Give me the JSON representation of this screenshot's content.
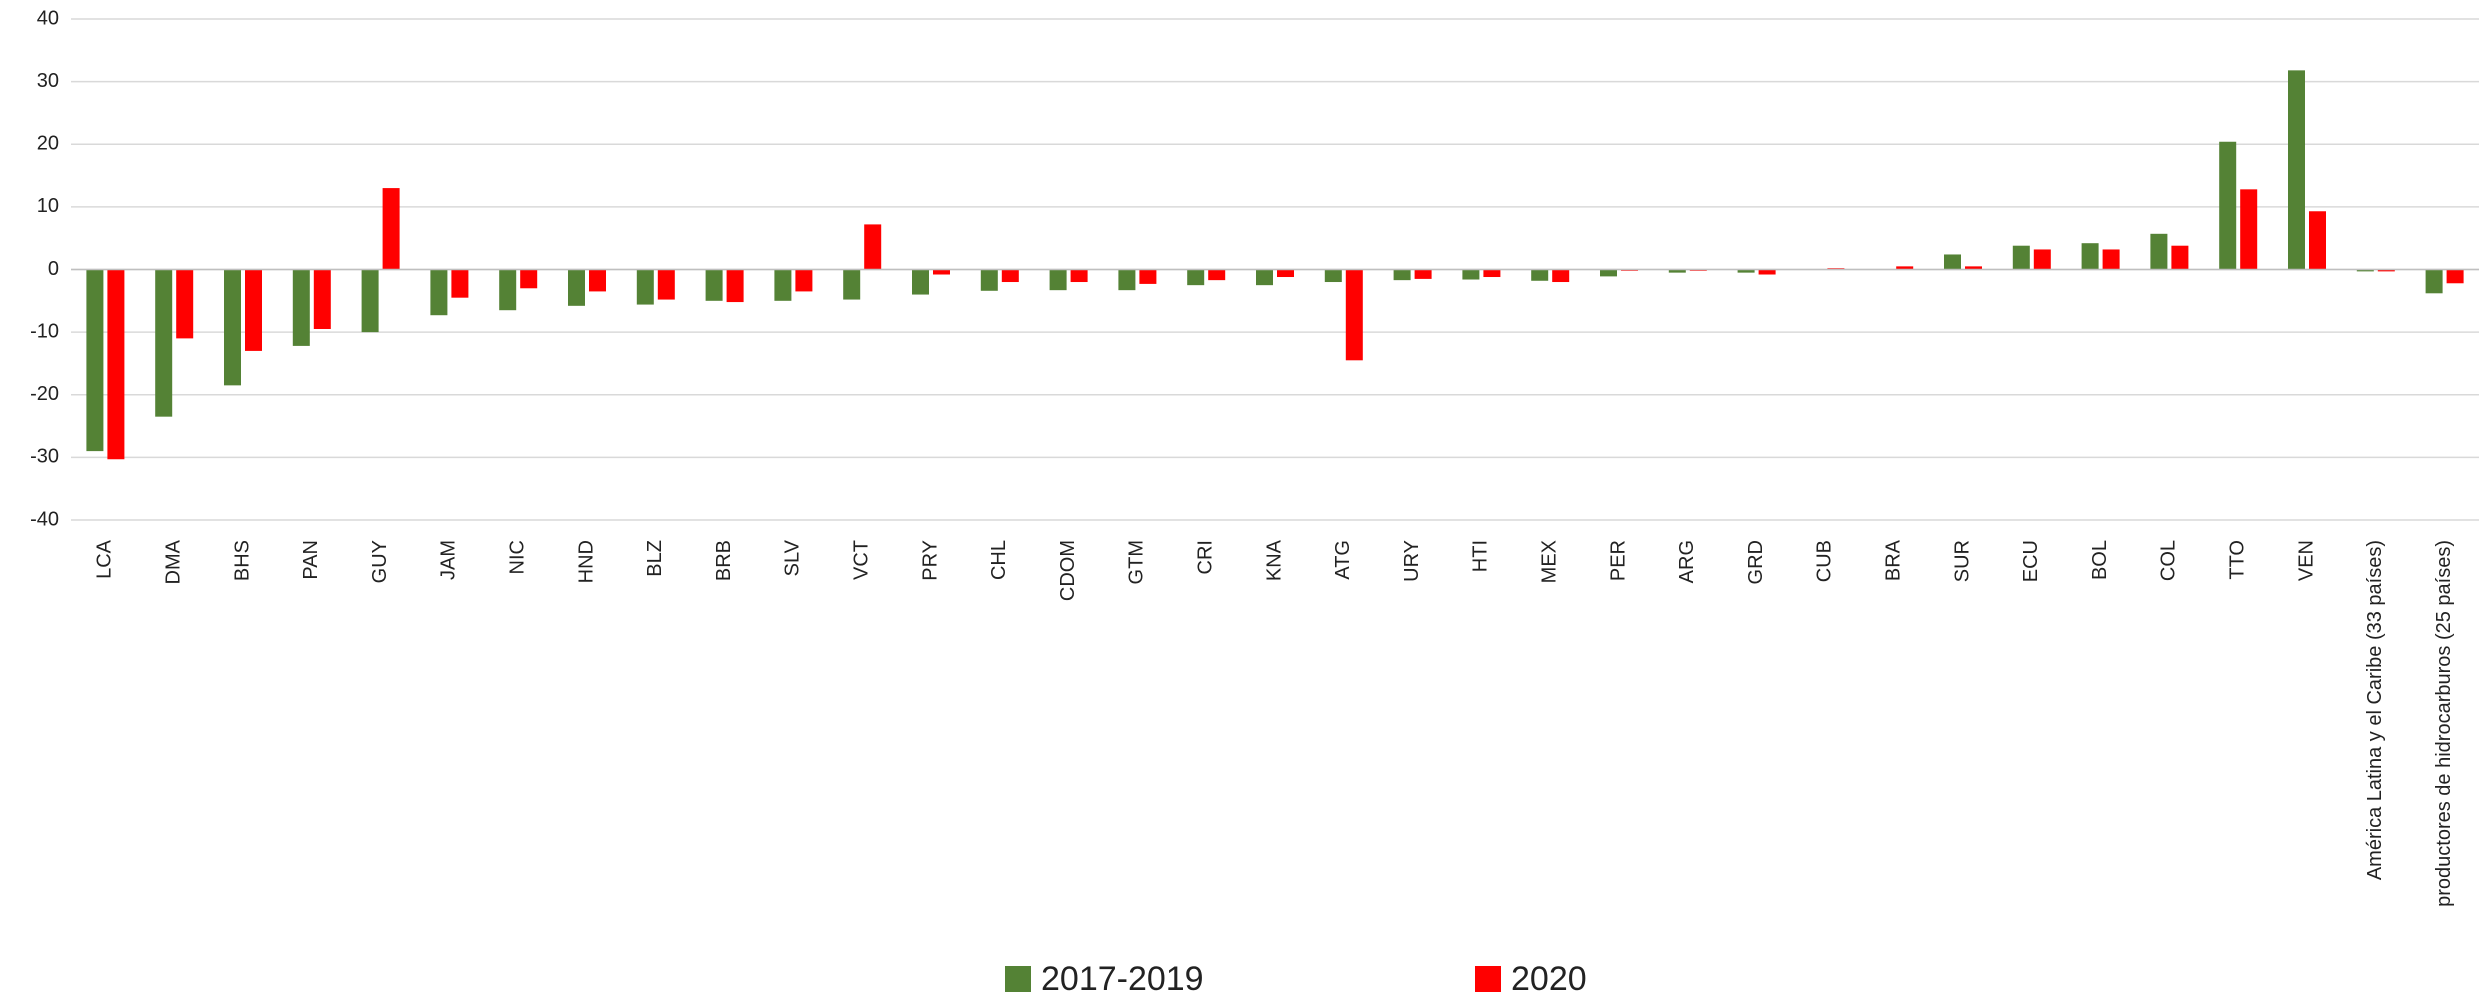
{
  "chart_data": {
    "type": "bar",
    "categories": [
      "LCA",
      "DMA",
      "BHS",
      "PAN",
      "GUY",
      "JAM",
      "NIC",
      "HND",
      "BLZ",
      "BRB",
      "SLV",
      "VCT",
      "PRY",
      "CHL",
      "CDOM",
      "GTM",
      "CRI",
      "KNA",
      "ATG",
      "URY",
      "HTI",
      "MEX",
      "PER",
      "ARG",
      "GRD",
      "CUB",
      "BRA",
      "SUR",
      "ECU",
      "BOL",
      "COL",
      "TTO",
      "VEN",
      "América Latina y el Caribe (33 países)",
      "productores de hidrocarburos (25 países)"
    ],
    "series": [
      {
        "name": "2017-2019",
        "color": "#548235",
        "values": [
          -29,
          -23.5,
          -18.5,
          -12.2,
          -10,
          -7.3,
          -6.5,
          -5.8,
          -5.6,
          -5,
          -5,
          -4.8,
          -4,
          -3.4,
          -3.3,
          -3.3,
          -2.5,
          -2.5,
          -2,
          -1.7,
          -1.6,
          -1.8,
          -1.1,
          -0.5,
          -0.5,
          0,
          0,
          2.4,
          3.8,
          4.2,
          5.7,
          20.4,
          31.8,
          -0.3,
          -3.8
        ]
      },
      {
        "name": "2020",
        "color": "#ff0000",
        "values": [
          -30.3,
          -11,
          -13,
          -9.5,
          13,
          -4.5,
          -3,
          -3.5,
          -4.8,
          -5.2,
          -3.5,
          7.2,
          -0.8,
          -2,
          -2,
          -2.3,
          -1.7,
          -1.2,
          -14.5,
          -1.5,
          -1.2,
          -2,
          -0.2,
          -0.2,
          -0.8,
          0.2,
          0.5,
          0.5,
          3.2,
          3.2,
          3.8,
          12.8,
          9.3,
          -0.3,
          -2.2
        ]
      }
    ],
    "ylim": [
      -40,
      40
    ],
    "yticks": [
      -40,
      -30,
      -20,
      -10,
      0,
      10,
      20,
      30,
      40
    ],
    "grid": true,
    "legend": "bottom"
  }
}
